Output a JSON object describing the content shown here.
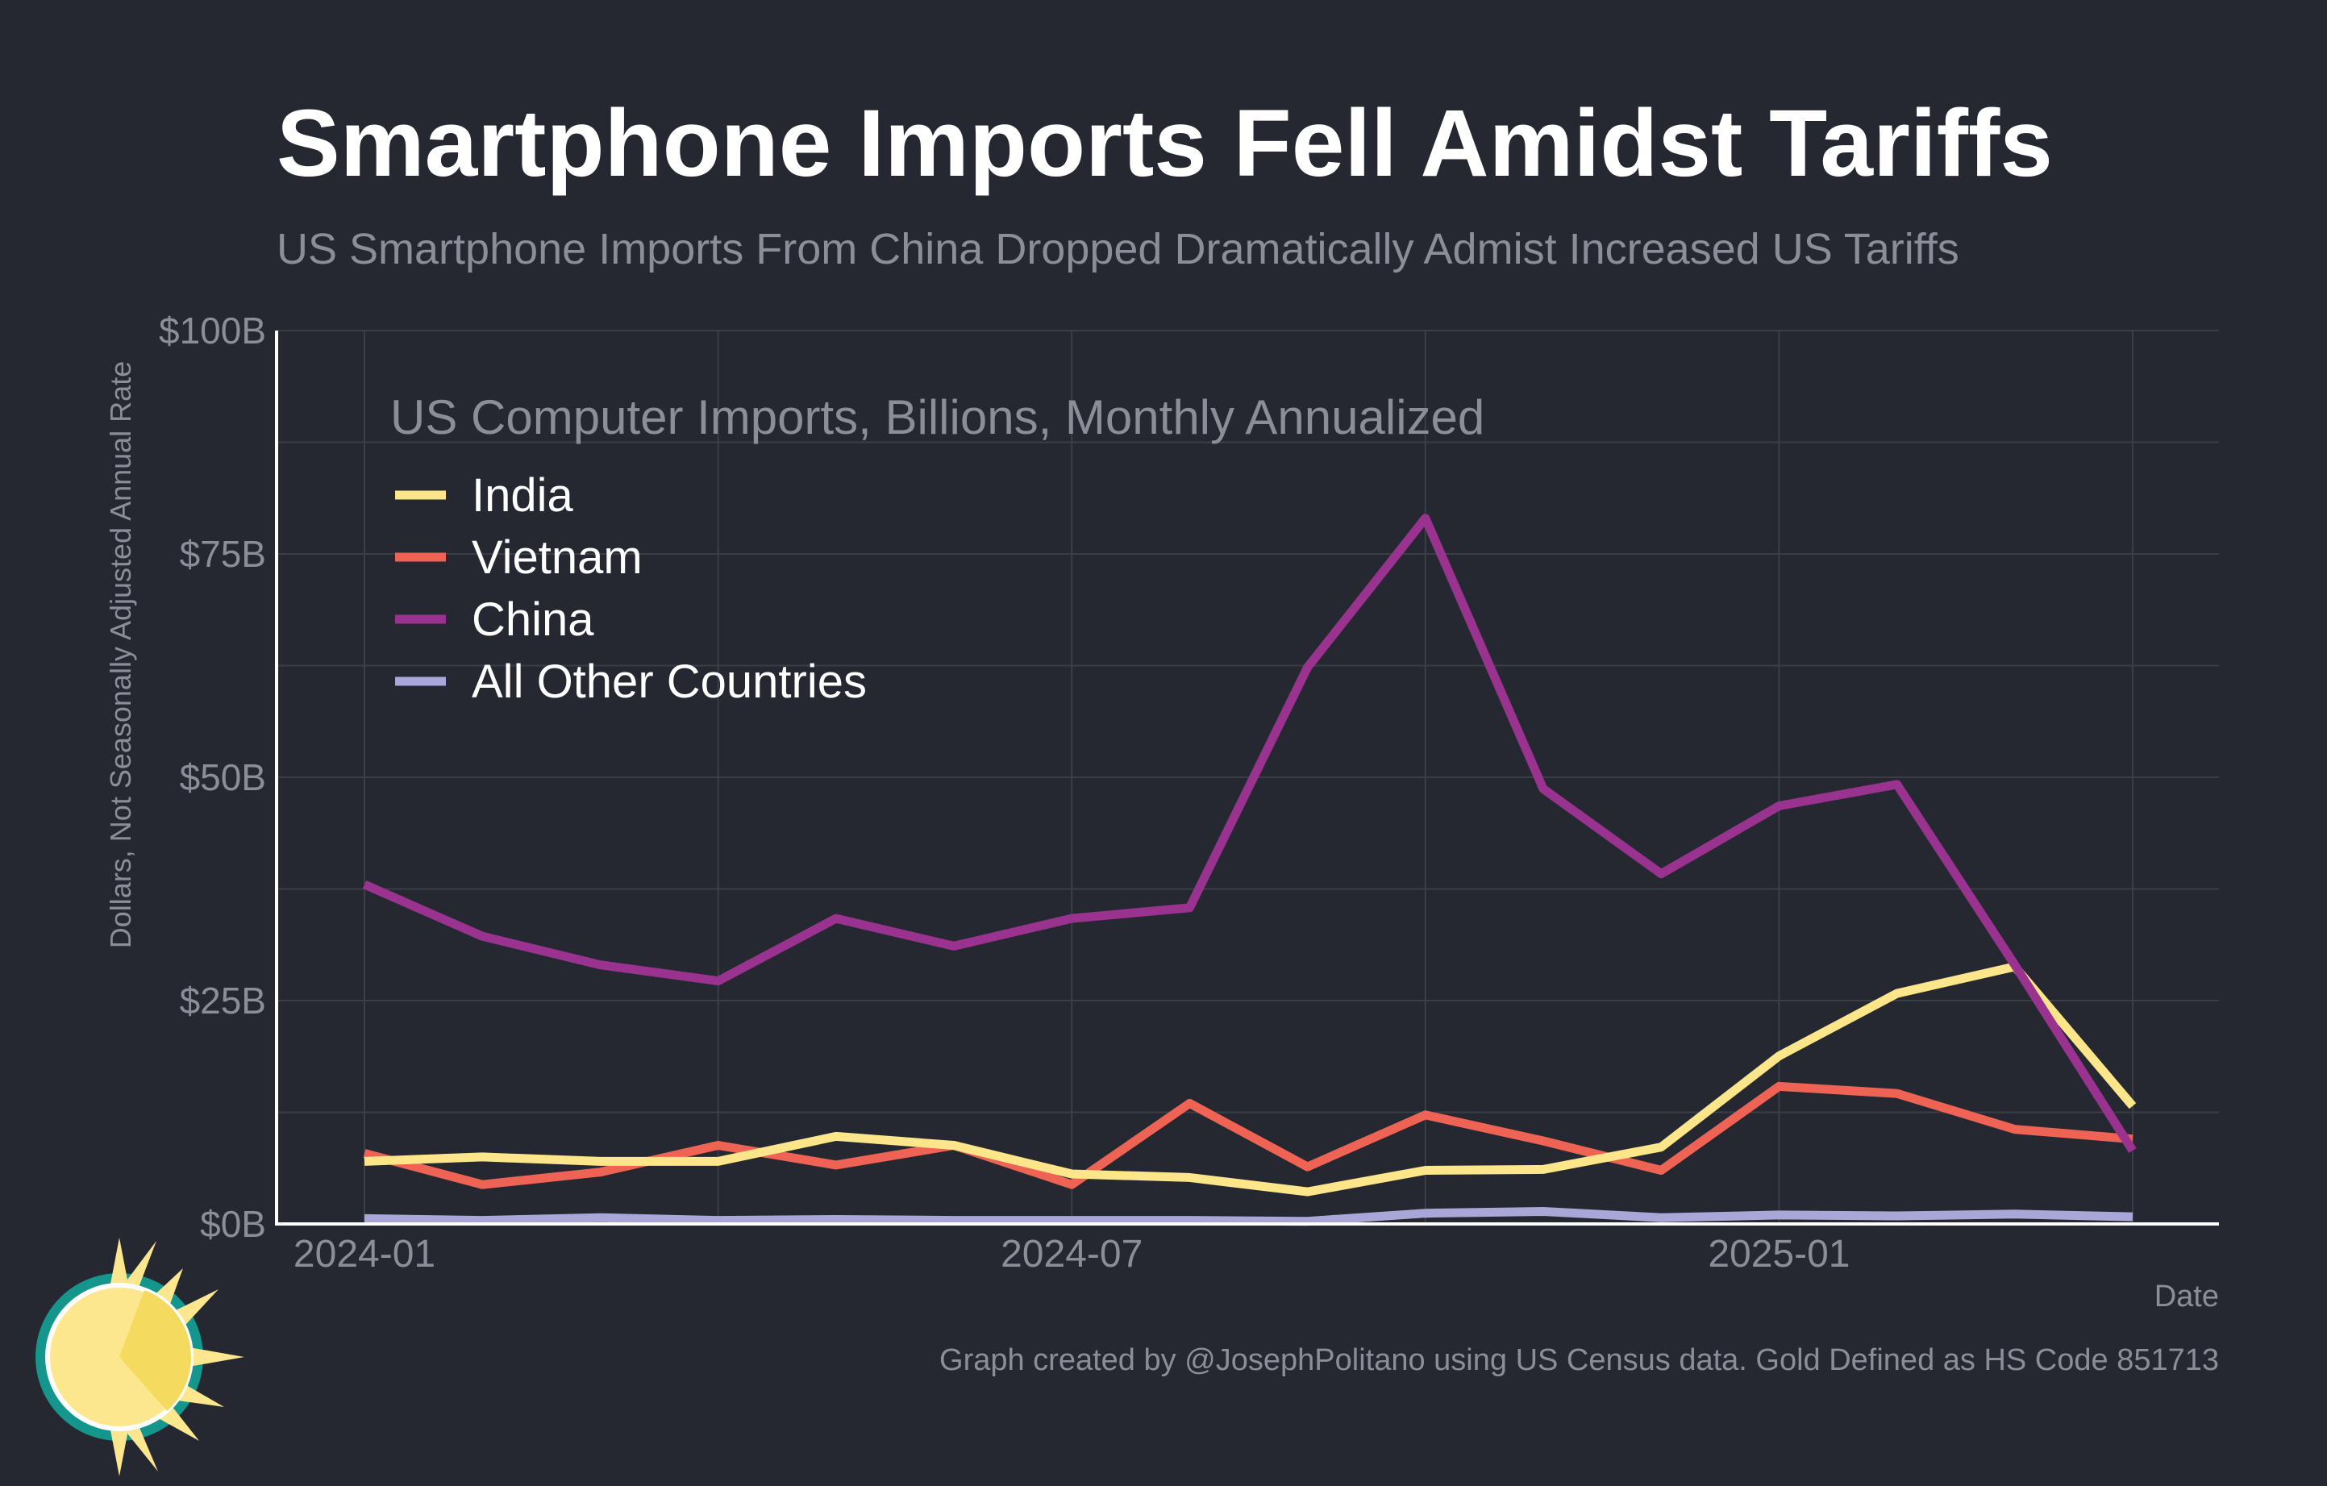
{
  "chart_data": {
    "type": "line",
    "title": "Smartphone Imports Fell Amidst Tariffs",
    "subtitle": "US Smartphone Imports From China Dropped Dramatically Admist Increased US Tariffs",
    "ylabel": "Dollars, Not Seasonally Adjusted Annual Rate",
    "xlabel": "Date",
    "legend_title": "US Computer Imports, Billions, Monthly Annualized",
    "legend_position": "top-left",
    "ylim": [
      0,
      100
    ],
    "ytick_values": [
      0,
      25,
      50,
      75,
      100
    ],
    "ytick_labels": [
      "$0B",
      "$25B",
      "$50B",
      "$75B",
      "$100B"
    ],
    "xtick_labels": [
      "2024-01",
      "2024-07",
      "2025-01"
    ],
    "xtick_indices": [
      0,
      6,
      12
    ],
    "x": [
      "2024-01",
      "2024-02",
      "2024-03",
      "2024-04",
      "2024-05",
      "2024-06",
      "2024-07",
      "2024-08",
      "2024-09",
      "2024-10",
      "2024-11",
      "2024-12",
      "2025-01",
      "2025-02",
      "2025-03",
      "2025-04"
    ],
    "grid": true,
    "series": [
      {
        "name": "India",
        "color": "#fde68a",
        "values": [
          7.0,
          7.5,
          7.0,
          7.0,
          9.8,
          8.8,
          5.6,
          5.2,
          3.6,
          6.0,
          6.1,
          8.6,
          18.8,
          25.8,
          28.8,
          13.2
        ]
      },
      {
        "name": "Vietnam",
        "color": "#ee6354",
        "values": [
          7.9,
          4.4,
          5.8,
          8.8,
          6.6,
          8.8,
          4.4,
          13.5,
          6.4,
          12.2,
          9.3,
          6.0,
          15.4,
          14.6,
          10.6,
          9.5
        ]
      },
      {
        "name": "China",
        "color": "#9a3390",
        "values": [
          38.0,
          32.2,
          29.0,
          27.2,
          34.2,
          31.1,
          34.2,
          35.4,
          62.3,
          79.0,
          48.7,
          39.2,
          46.8,
          49.2,
          29.0,
          8.2
        ]
      },
      {
        "name": "All Other Countries",
        "color": "#a8a7d8",
        "values": [
          0.6,
          0.4,
          0.7,
          0.4,
          0.5,
          0.4,
          0.4,
          0.4,
          0.3,
          1.2,
          1.4,
          0.7,
          1.0,
          0.9,
          1.1,
          0.8
        ]
      }
    ]
  },
  "credit": "Graph created by @JosephPolitano using US Census data. Gold Defined as HS Code 851713",
  "colors": {
    "background": "#252830",
    "grid": "#3a3e47",
    "axis": "#ffffff",
    "muted_text": "#8a8e97",
    "logo_teal": "#15968c",
    "logo_sun": "#fce78f",
    "logo_sun_dark": "#f4db60"
  },
  "logo": {
    "icon": "sun-logo-icon"
  }
}
